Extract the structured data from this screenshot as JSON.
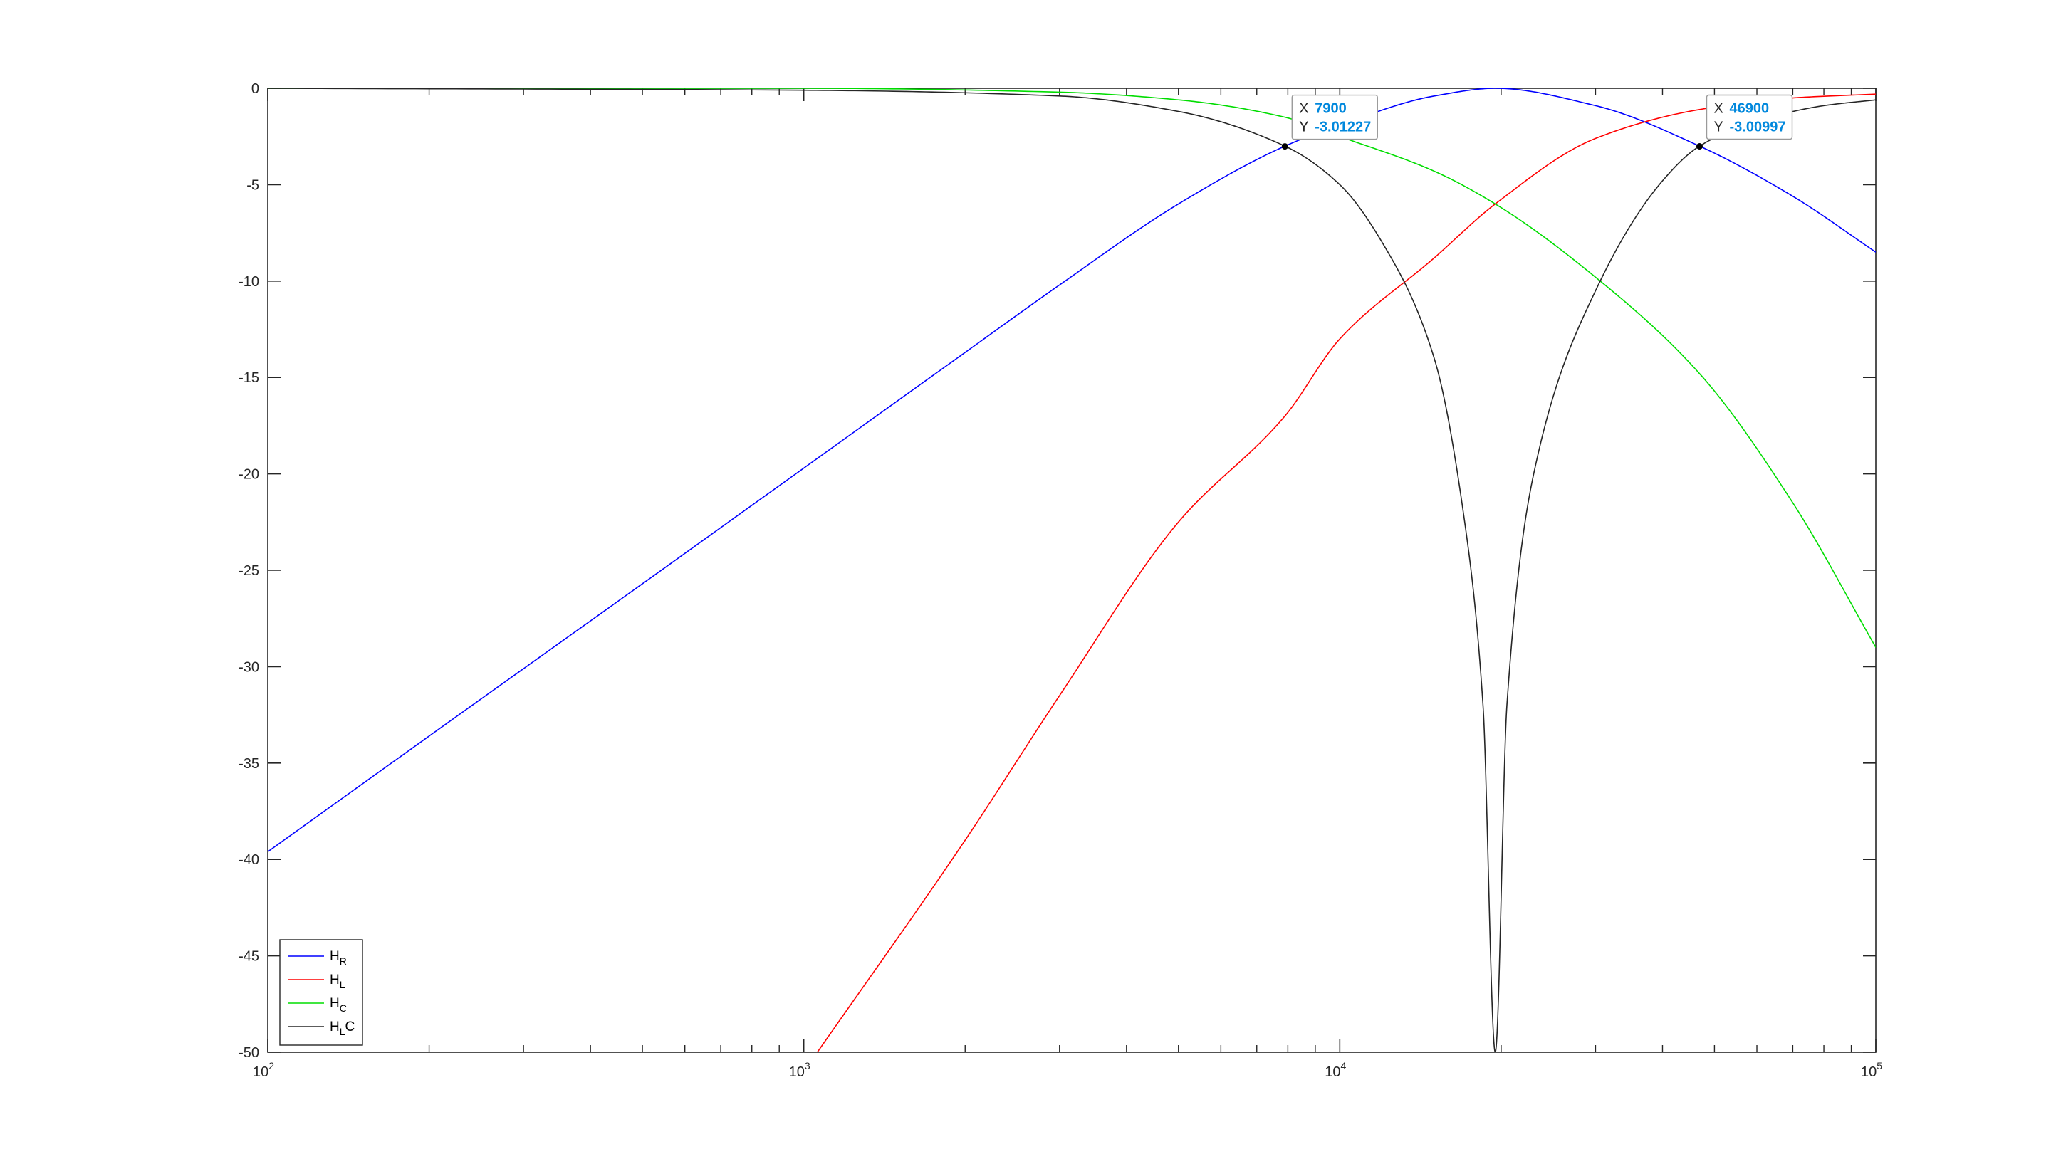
{
  "chart_data": {
    "type": "line",
    "xscale": "log",
    "xlim": [
      100,
      100000
    ],
    "ylim": [
      -50,
      0
    ],
    "grid": false,
    "legend_location": "bottom-left",
    "xticks": [
      {
        "value": 100,
        "base": "10",
        "exp": "2"
      },
      {
        "value": 1000,
        "base": "10",
        "exp": "3"
      },
      {
        "value": 10000,
        "base": "10",
        "exp": "4"
      },
      {
        "value": 100000,
        "base": "10",
        "exp": "5"
      }
    ],
    "yticks": [
      {
        "value": 0,
        "label": "0"
      },
      {
        "value": -5,
        "label": "-5"
      },
      {
        "value": -10,
        "label": "-10"
      },
      {
        "value": -15,
        "label": "-15"
      },
      {
        "value": -20,
        "label": "-20"
      },
      {
        "value": -25,
        "label": "-25"
      },
      {
        "value": -30,
        "label": "-30"
      },
      {
        "value": -35,
        "label": "-35"
      },
      {
        "value": -40,
        "label": "-40"
      },
      {
        "value": -45,
        "label": "-45"
      },
      {
        "value": -50,
        "label": "-50"
      }
    ],
    "series": [
      {
        "name": "H_R",
        "legend_main": "H",
        "legend_sub": "R",
        "legend_tail": "",
        "color": "#0000ff",
        "x": [
          100,
          200,
          500,
          1000,
          2000,
          3000,
          5000,
          7900,
          10000,
          15000,
          19500,
          30000,
          46900,
          70000,
          100000
        ],
        "y": [
          -39.6,
          -33.6,
          -25.7,
          -19.7,
          -13.7,
          -10.2,
          -6.0,
          -3.0,
          -1.9,
          -0.4,
          0,
          -0.9,
          -3.0,
          -5.6,
          -8.5
        ]
      },
      {
        "name": "H_L",
        "legend_main": "H",
        "legend_sub": "L",
        "legend_tail": "",
        "color": "#ff0000",
        "x": [
          1060,
          2000,
          3000,
          5000,
          7900,
          10000,
          15000,
          19500,
          30000,
          46900,
          70000,
          100000
        ],
        "y": [
          -50,
          -39.0,
          -31.5,
          -22.5,
          -17.0,
          -13.0,
          -8.8,
          -6.0,
          -2.6,
          -1.1,
          -0.5,
          -0.3
        ]
      },
      {
        "name": "H_C",
        "legend_main": "H",
        "legend_sub": "C",
        "legend_tail": "",
        "color": "#00dd00",
        "x": [
          100,
          1000,
          3000,
          5000,
          7900,
          10000,
          15000,
          19500,
          30000,
          46900,
          70000,
          100000
        ],
        "y": [
          0,
          0,
          -0.2,
          -0.6,
          -1.5,
          -2.5,
          -4.3,
          -6.0,
          -9.8,
          -14.8,
          -21.5,
          -29.0
        ]
      },
      {
        "name": "H_LC",
        "legend_main": "H",
        "legend_sub": "L",
        "legend_tail": "C",
        "color": "#262626",
        "x": [
          100,
          1000,
          3000,
          5000,
          7900,
          10000,
          12000,
          15000,
          17000,
          18500,
          19500,
          20500,
          23000,
          30000,
          40000,
          46900,
          60000,
          80000,
          100000
        ],
        "y": [
          0,
          -0.1,
          -0.4,
          -1.2,
          -3.0,
          -5.0,
          -8.0,
          -14.0,
          -22.0,
          -32.0,
          -50.0,
          -32.0,
          -20.0,
          -10.5,
          -4.8,
          -3.0,
          -1.7,
          -0.9,
          -0.6
        ]
      }
    ],
    "datatips": [
      {
        "x_key": "X",
        "x_value": "7900",
        "y_key": "Y",
        "y_value": "-3.01227",
        "x": 7900,
        "y": -3.01227
      },
      {
        "x_key": "X",
        "x_value": "46900",
        "y_key": "Y",
        "y_value": "-3.00997",
        "x": 46900,
        "y": -3.00997
      }
    ]
  }
}
